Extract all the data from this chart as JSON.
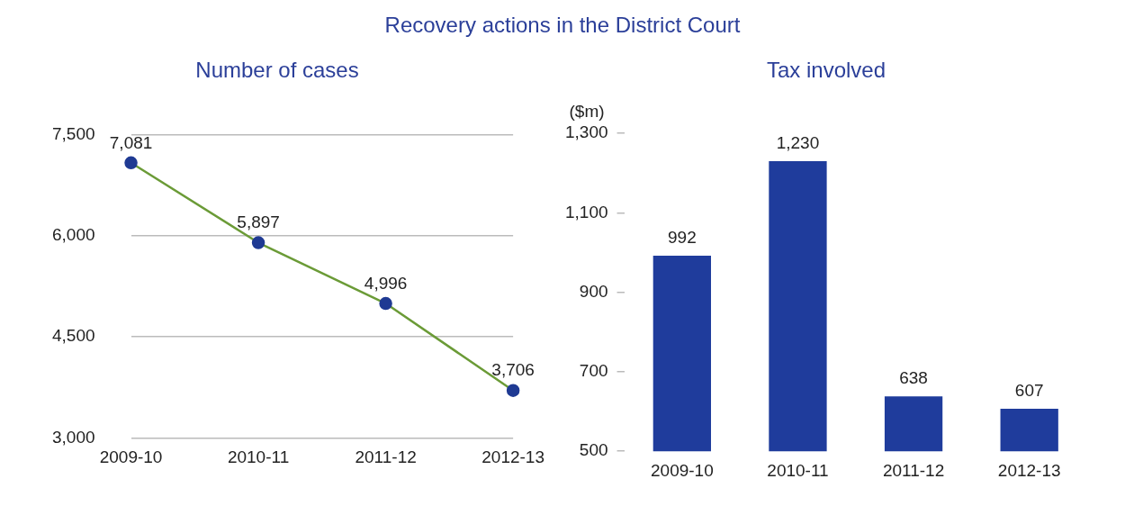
{
  "chart_data": [
    {
      "type": "line",
      "title": "Recovery actions in the District Court",
      "subtitle": "Number of cases",
      "categories": [
        "2009-10",
        "2010-11",
        "2011-12",
        "2012-13"
      ],
      "values": [
        7081,
        5897,
        4996,
        3706
      ],
      "color": "#6b9b37",
      "colors": [
        "#1f3a93",
        "#1f3a93",
        "#1f3a93",
        "#1f3a93"
      ],
      "value_labels": [
        "7,081",
        "5,897",
        "4,996",
        "3,706"
      ],
      "ylim": [
        3000,
        7500
      ],
      "yticks": [
        {
          "value": 3000,
          "label": "3,000"
        },
        {
          "value": 4500,
          "label": "4,500"
        },
        {
          "value": 6000,
          "label": "6,000"
        },
        {
          "value": 7500,
          "label": "7,500"
        }
      ],
      "grid": "y",
      "marker": "circle",
      "line_style": "solid"
    },
    {
      "type": "bar",
      "subtitle": "Tax involved",
      "ylabel": "($m)",
      "categories": [
        "2009-10",
        "2010-11",
        "2011-12",
        "2012-13"
      ],
      "values": [
        992,
        1230,
        638,
        607
      ],
      "color": "#1f3c9c",
      "value_labels": [
        "992",
        "1,230",
        "638",
        "607"
      ],
      "ylim": [
        500,
        1300
      ],
      "yticks": [
        500,
        700,
        900,
        {
          "value": 1100,
          "label": "1,100"
        },
        {
          "value": 1300,
          "label": "1,300"
        }
      ]
    }
  ]
}
